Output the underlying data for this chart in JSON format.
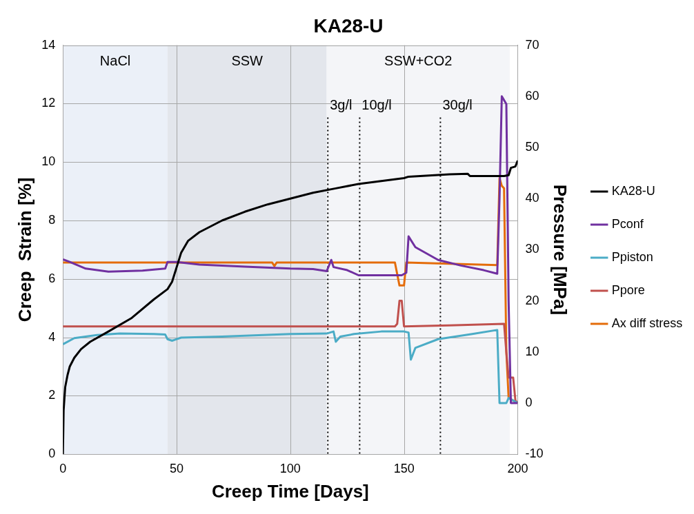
{
  "chart_data": {
    "type": "line",
    "title": "KA28-U",
    "xlabel": "Creep Time [Days]",
    "ylabel": "Creep  Strain [%]",
    "y2label": "Pressure [MPa]",
    "xlim": [
      0,
      200
    ],
    "xticks": [
      0,
      50,
      100,
      150,
      200
    ],
    "ylim": [
      0,
      14
    ],
    "yticks": [
      0,
      2,
      4,
      6,
      8,
      10,
      12,
      14
    ],
    "y2lim": [
      -10,
      70
    ],
    "y2ticks": [
      -10,
      0,
      10,
      20,
      30,
      40,
      50,
      60,
      70
    ],
    "grid": true,
    "legend": "right",
    "marker": "none",
    "line_style": "solid",
    "series": [
      {
        "name": "KA28-U",
        "color": "#000000",
        "x": [
          0,
          0.3,
          1,
          2,
          3,
          5,
          8,
          12,
          20,
          30,
          40,
          46,
          48,
          50,
          52,
          55,
          60,
          70,
          80,
          90,
          100,
          110,
          120,
          130,
          140,
          150,
          152,
          170,
          178,
          179,
          194,
          196,
          197,
          199,
          200
        ],
        "values": [
          0,
          1.5,
          2.3,
          2.7,
          3.0,
          3.3,
          3.6,
          3.85,
          4.2,
          4.65,
          5.3,
          5.65,
          5.9,
          6.4,
          6.9,
          7.3,
          7.6,
          8.0,
          8.3,
          8.55,
          8.75,
          8.95,
          9.1,
          9.25,
          9.35,
          9.45,
          9.5,
          9.58,
          9.6,
          9.52,
          9.52,
          9.55,
          9.8,
          9.85,
          10.05
        ]
      },
      {
        "name": "Pconf",
        "color": "#7030a0",
        "axis": "y2",
        "x": [
          0,
          3,
          10,
          20,
          35,
          45,
          46,
          50,
          60,
          80,
          100,
          110,
          116,
          118,
          119,
          125,
          130,
          149,
          151,
          152,
          155,
          165,
          175,
          185,
          191,
          192,
          193,
          195,
          196,
          197,
          200
        ],
        "values": [
          28.1,
          27.6,
          26.3,
          25.7,
          25.9,
          26.3,
          27.6,
          27.6,
          27.1,
          26.7,
          26.3,
          26.2,
          25.8,
          28,
          26.6,
          26,
          25,
          25,
          25.5,
          32.6,
          30.5,
          28,
          26.9,
          26,
          25.3,
          40,
          60,
          58.5,
          20,
          0,
          0
        ]
      },
      {
        "name": "Ppiston",
        "color": "#4bacc6",
        "axis": "y2",
        "x": [
          0,
          5,
          15,
          25,
          40,
          45,
          46,
          48,
          52,
          70,
          100,
          116,
          119,
          120,
          122,
          128,
          140,
          150,
          152,
          153,
          155,
          165,
          180,
          191,
          192,
          195,
          196,
          200
        ],
        "values": [
          11.5,
          12.7,
          13.3,
          13.6,
          13.5,
          13.4,
          12.5,
          12.2,
          12.8,
          13,
          13.5,
          13.6,
          14,
          12,
          13,
          13.5,
          14,
          14,
          13.8,
          8.5,
          10.8,
          12.5,
          13.5,
          14.3,
          0,
          0,
          1,
          0
        ]
      },
      {
        "name": "Ppore",
        "color": "#c0504d",
        "axis": "y2",
        "x": [
          0,
          146,
          147,
          148,
          149,
          150,
          170,
          194,
          195,
          196,
          198,
          199,
          200
        ],
        "values": [
          15,
          15,
          15.5,
          20,
          20,
          15,
          15.2,
          15.5,
          10,
          5,
          5,
          0.5,
          0
        ]
      },
      {
        "name": "Ax diff stress",
        "color": "#e46c0a",
        "axis": "y2",
        "x": [
          0,
          92,
          93,
          94,
          146,
          148,
          150,
          151,
          191,
          192,
          193,
          194,
          195,
          196,
          200
        ],
        "values": [
          27.5,
          27.5,
          26.8,
          27.5,
          27.5,
          23,
          23,
          27.5,
          27,
          44,
          42.5,
          42,
          10,
          1,
          0
        ]
      }
    ],
    "bands": [
      {
        "axis": "x",
        "from": 0,
        "to": 46,
        "label": "NaCl",
        "color": "#ebf0f8"
      },
      {
        "axis": "x",
        "from": 46,
        "to": 116,
        "label": "SSW",
        "color": "#e3e6ec"
      },
      {
        "axis": "x",
        "from": 116,
        "to": 196.5,
        "label": "SSW+CO2",
        "color": "#f4f5f8"
      }
    ],
    "ref_lines": [
      {
        "axis": "x",
        "value": 116.5,
        "color": "#000000",
        "line_style": "dotted"
      },
      {
        "axis": "x",
        "value": 130.5,
        "color": "#000000",
        "line_style": "dotted"
      },
      {
        "axis": "x",
        "value": 166,
        "color": "#000000",
        "line_style": "dotted"
      }
    ],
    "annotations": [
      "3g/l",
      "10g/l",
      "30g/l"
    ]
  }
}
